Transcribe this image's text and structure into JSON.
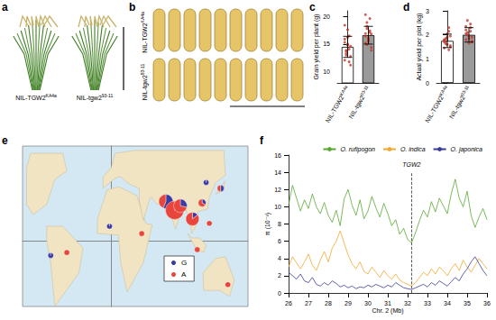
{
  "images": [
    {
      "panel_label": "a",
      "labels": [
        "NIL-TGW2",
        "NIL-tgw2"
      ],
      "superscripts": [
        "KA4a",
        "93-11"
      ]
    },
    {
      "panel_label": "b",
      "labels": [
        "NIL-TGW2",
        "NIL-tgw2"
      ],
      "superscripts": [
        "KA4a",
        "93-11"
      ]
    }
  ],
  "chart_data": [
    {
      "type": "bar",
      "panel_label": "c",
      "categories": [
        "NIL-TGW2",
        "NIL-tgw2"
      ],
      "category_superscripts": [
        "KA4a",
        "93-11"
      ],
      "values": [
        14.5,
        16.6
      ],
      "errors": [
        1.9,
        1.6
      ],
      "colors": [
        "#ffffff",
        "#9a9a9a"
      ],
      "points": [
        [
          12.1,
          13.0,
          14.8,
          16.5,
          11.2,
          15.3,
          13.7,
          17.6,
          14.1,
          12.8,
          15.9,
          13.3,
          16.2,
          11.8,
          14.6,
          18.4,
          13.9,
          15.0
        ],
        [
          15.2,
          17.8,
          16.0,
          19.6,
          14.4,
          16.9,
          18.2,
          15.7,
          17.1,
          13.9,
          16.4,
          18.9,
          15.5,
          17.4,
          16.8,
          20.3,
          14.9,
          16.1
        ]
      ],
      "point_color": "#c0392b",
      "y_label": "Grain yield per plant (g)",
      "ylim": [
        8,
        21
      ],
      "yticks": [
        10,
        15,
        20
      ],
      "grid": false
    },
    {
      "type": "bar",
      "panel_label": "d",
      "categories": [
        "NIL-TGW2",
        "NIL-tgw2"
      ],
      "category_superscripts": [
        "KA4a",
        "93-11"
      ],
      "values": [
        1.75,
        2.0
      ],
      "errors": [
        0.28,
        0.3
      ],
      "colors": [
        "#ffffff",
        "#9a9a9a"
      ],
      "points": [
        [
          1.45,
          1.72,
          1.9,
          2.15,
          1.55,
          1.8,
          1.62,
          2.05,
          1.38,
          1.95,
          1.7,
          1.85,
          1.6,
          2.3,
          1.5,
          1.78
        ],
        [
          1.8,
          2.1,
          1.95,
          2.45,
          1.7,
          2.2,
          2.0,
          1.65,
          2.3,
          1.9,
          2.05,
          2.6,
          1.85,
          2.15,
          1.75,
          2.35
        ]
      ],
      "point_color": "#c0392b",
      "y_label": "Actual yield per plot (kg)",
      "ylim": [
        0,
        3
      ],
      "yticks": [
        0,
        1,
        2,
        3
      ],
      "grid": false
    },
    {
      "type": "pie_map",
      "panel_label": "e",
      "xlim": [
        -110,
        170
      ],
      "ylim": [
        -45,
        65
      ],
      "tick_labels": false,
      "grid": false,
      "alleles": [
        {
          "name": "G",
          "color": "#3a3aa6"
        },
        {
          "name": "A",
          "color": "#e8453c"
        }
      ],
      "locations": [
        {
          "lon": 68,
          "lat": 27,
          "G": 9,
          "A": 7
        },
        {
          "lon": 79,
          "lat": 21,
          "G": 6,
          "A": 24
        },
        {
          "lon": 86,
          "lat": 24,
          "G": 4,
          "A": 10
        },
        {
          "lon": 101,
          "lat": 15,
          "G": 2,
          "A": 12
        },
        {
          "lon": 113,
          "lat": 26,
          "G": 1,
          "A": 2
        },
        {
          "lon": 136,
          "lat": 36,
          "G": 1,
          "A": 1
        },
        {
          "lon": 122,
          "lat": 12,
          "G": 0,
          "A": 1
        },
        {
          "lon": 107,
          "lat": -6,
          "G": 0,
          "A": 1
        },
        {
          "lon": -2,
          "lat": 10,
          "G": 1,
          "A": 0
        },
        {
          "lon": 38,
          "lat": 5,
          "G": 0,
          "A": 1
        },
        {
          "lon": -55,
          "lat": -8,
          "G": 0,
          "A": 1
        },
        {
          "lon": -75,
          "lat": -10,
          "G": 1,
          "A": 0
        },
        {
          "lon": 145,
          "lat": -30,
          "G": 0,
          "A": 1
        },
        {
          "lon": 118,
          "lat": 40,
          "G": 1,
          "A": 0
        }
      ]
    },
    {
      "type": "line",
      "panel_label": "f",
      "x_label": "Chr. 2 (Mb)",
      "y_label": "π (10⁻³)",
      "x": [
        26,
        26.2,
        26.4,
        26.6,
        26.8,
        27,
        27.2,
        27.4,
        27.6,
        27.8,
        28,
        28.2,
        28.4,
        28.6,
        28.8,
        29,
        29.2,
        29.4,
        29.6,
        29.8,
        30,
        30.2,
        30.4,
        30.6,
        30.8,
        31,
        31.2,
        31.4,
        31.6,
        31.8,
        32,
        32.2,
        32.4,
        32.6,
        32.8,
        33,
        33.2,
        33.4,
        33.6,
        33.8,
        34,
        34.2,
        34.4,
        34.6,
        34.8,
        35,
        35.2,
        35.4,
        35.6,
        35.8,
        36
      ],
      "series": [
        {
          "name": "O. rufipogon",
          "color": "#5aa832",
          "values": [
            10.2,
            12.5,
            11.0,
            9.5,
            10.8,
            9.8,
            11.5,
            10.0,
            9.2,
            10.5,
            9.0,
            8.2,
            9.6,
            7.8,
            10.9,
            12.0,
            10.2,
            9.0,
            10.8,
            8.6,
            9.5,
            11.2,
            9.9,
            8.8,
            10.4,
            9.2,
            7.8,
            8.5,
            6.8,
            7.5,
            6.2,
            5.8,
            7.0,
            8.4,
            9.6,
            8.8,
            10.6,
            9.4,
            11.0,
            10.1,
            9.2,
            11.5,
            13.2,
            11.0,
            10.0,
            11.8,
            9.0,
            7.6,
            8.8,
            9.8,
            8.5
          ]
        },
        {
          "name": "O. indica",
          "color": "#f0a830",
          "values": [
            3.0,
            4.2,
            3.5,
            2.8,
            3.6,
            4.5,
            3.2,
            2.6,
            3.8,
            4.8,
            3.6,
            5.2,
            6.0,
            7.2,
            5.8,
            4.4,
            3.4,
            2.8,
            3.6,
            2.5,
            2.2,
            3.0,
            2.4,
            1.8,
            2.6,
            2.0,
            1.6,
            2.2,
            1.5,
            1.2,
            1.0,
            0.8,
            1.2,
            1.8,
            2.4,
            2.0,
            2.8,
            2.2,
            3.0,
            2.6,
            2.0,
            2.8,
            3.4,
            2.6,
            3.8,
            3.0,
            2.4,
            3.2,
            4.0,
            3.4,
            2.8
          ]
        },
        {
          "name": "O. japonica",
          "color": "#3b3b9a",
          "values": [
            2.4,
            2.0,
            1.6,
            2.2,
            1.4,
            1.2,
            1.8,
            1.0,
            0.8,
            1.2,
            0.9,
            1.4,
            1.1,
            0.7,
            0.9,
            0.6,
            0.8,
            0.5,
            0.7,
            0.6,
            0.9,
            0.7,
            1.0,
            0.8,
            0.6,
            0.9,
            0.7,
            1.2,
            0.9,
            0.6,
            0.5,
            0.4,
            0.6,
            0.8,
            1.0,
            0.7,
            1.2,
            0.9,
            1.4,
            1.1,
            0.8,
            1.3,
            1.8,
            1.4,
            2.2,
            2.8,
            3.6,
            4.2,
            3.4,
            2.6,
            2.0
          ]
        }
      ],
      "xlim": [
        26,
        36
      ],
      "xticks": [
        26,
        27,
        28,
        29,
        30,
        31,
        32,
        33,
        34,
        35,
        36
      ],
      "ylim": [
        0,
        16
      ],
      "yticks": [
        0,
        2,
        4,
        6,
        8,
        10,
        12,
        14,
        16
      ],
      "legend": "upper right",
      "grid": false,
      "annotations": [
        {
          "text": "TGW2",
          "x": 32.2,
          "y": 14,
          "line_style": "dashed"
        }
      ]
    }
  ]
}
